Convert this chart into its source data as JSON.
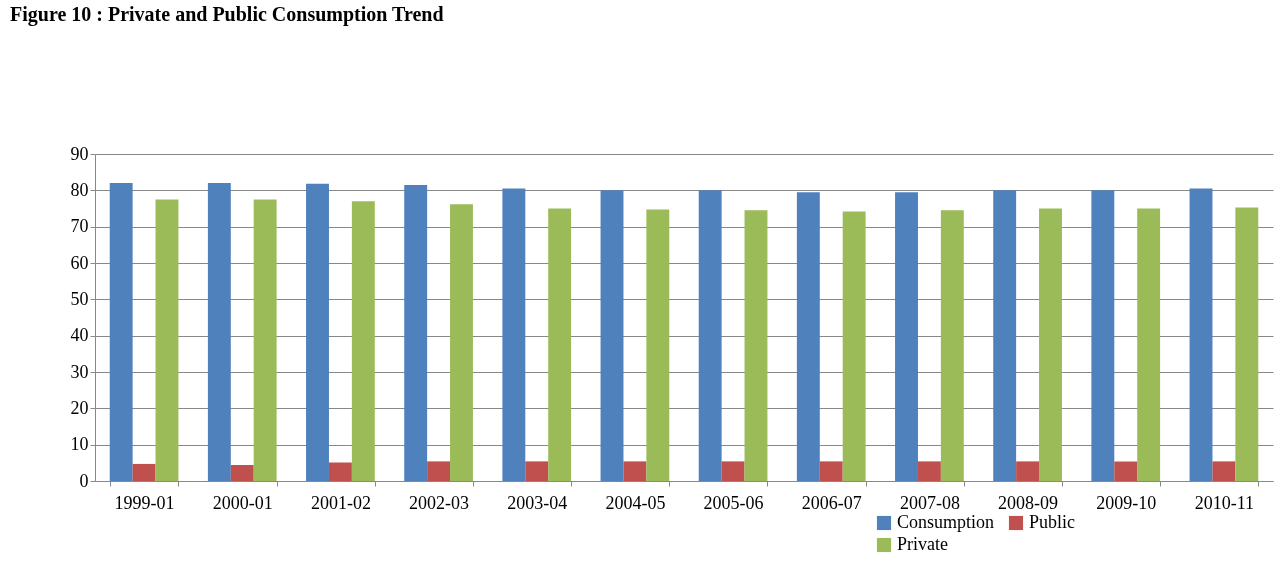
{
  "chart_data": {
    "type": "bar",
    "title": "Figure 10 : Private and Public Consumption Trend",
    "categories": [
      "1999-01",
      "2000-01",
      "2001-02",
      "2002-03",
      "2003-04",
      "2004-05",
      "2005-06",
      "2006-07",
      "2007-08",
      "2008-09",
      "2009-10",
      "2010-11"
    ],
    "series": [
      {
        "name": "Consumption",
        "color": "#4f81bd",
        "values": [
          82,
          82,
          81.8,
          81.5,
          80.5,
          80,
          80,
          79.5,
          79.5,
          80,
          80,
          80.5
        ]
      },
      {
        "name": "Public",
        "color": "#c0504d",
        "values": [
          4.7,
          4.4,
          5.1,
          5.4,
          5.4,
          5.4,
          5.4,
          5.4,
          5.4,
          5.4,
          5.4,
          5.4
        ]
      },
      {
        "name": "Private",
        "color": "#9bbb59",
        "values": [
          77.5,
          77.5,
          77,
          76.2,
          75,
          74.7,
          74.5,
          74.2,
          74.5,
          75,
          75,
          75.3
        ]
      }
    ],
    "ylim": [
      0,
      90
    ],
    "yticks": [
      0,
      10,
      20,
      30,
      40,
      50,
      60,
      70,
      80,
      90
    ],
    "grid": "y",
    "legend": "bottom right"
  }
}
